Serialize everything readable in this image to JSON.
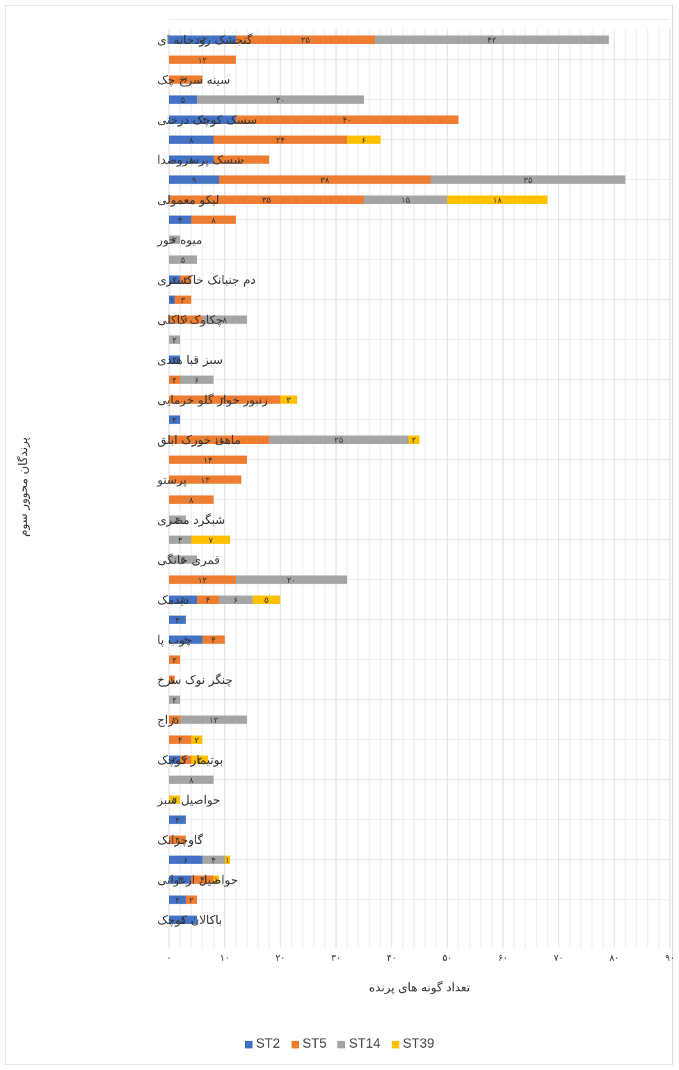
{
  "chart_data": {
    "type": "bar",
    "orientation": "horizontal",
    "stacked": true,
    "ylabel": "پرندگان محوور سوم",
    "xlabel": "تعداد گونه های پرنده",
    "xlim": [
      0,
      90
    ],
    "xticks": [
      "۰",
      "۱۰",
      "۲۰",
      "۳۰",
      "۴۰",
      "۵۰",
      "۶۰",
      "۷۰",
      "۸۰",
      "۹۰"
    ],
    "grid": true,
    "legend_position": "bottom",
    "series_names": [
      "ST2",
      "ST5",
      "ST14",
      "ST39"
    ],
    "colors": {
      "ST2": "#4472c4",
      "ST5": "#ed7d31",
      "ST14": "#a5a5a5",
      "ST39": "#ffc000"
    },
    "categories": [
      "گنجشک رودخانه ای",
      "",
      "سینه سرخ چک",
      "",
      "سسک کوچک درختی",
      "",
      "سسک پرسروصدا",
      "",
      "لیکو معمولی",
      "",
      "میوه خور",
      "",
      "دم جنبانک خاکستری",
      "",
      "چکاوک کاکلی",
      "",
      "سبز قبا هندی",
      "",
      "زنبور خوار گلو خرمایی",
      "",
      "ماهی خورک ابلق",
      "",
      "پرستو",
      "",
      "شبگرد مصری",
      "",
      "قمری خانگی",
      "",
      "دیدمک",
      "",
      "چوب پا",
      "",
      "چنگر نوک سرخ",
      "",
      "دراج",
      "",
      "بوتیمار کوچک",
      "",
      "حواصیل سبز",
      "",
      "گاوچرانک",
      "",
      "حواصیل  ارغوانی",
      "",
      "باکالان کوچک"
    ],
    "rows": [
      [
        {
          "s": "ST2",
          "v": 12,
          "t": "۱۲"
        },
        {
          "s": "ST5",
          "v": 25,
          "t": "۲۵"
        },
        {
          "s": "ST14",
          "v": 42,
          "t": "۴۲"
        }
      ],
      [
        {
          "s": "ST5",
          "v": 12,
          "t": "۱۲"
        }
      ],
      [
        {
          "s": "ST5",
          "v": 6,
          "t": "۶"
        }
      ],
      [
        {
          "s": "ST2",
          "v": 5,
          "t": "۵"
        },
        {
          "s": "ST14",
          "v": 30,
          "t": "۳۰"
        }
      ],
      [
        {
          "s": "ST2",
          "v": 12,
          "t": "۱۲"
        },
        {
          "s": "ST5",
          "v": 40,
          "t": "۴۰"
        }
      ],
      [
        {
          "s": "ST2",
          "v": 8,
          "t": "۸"
        },
        {
          "s": "ST5",
          "v": 24,
          "t": "۲۴"
        },
        {
          "s": "ST39",
          "v": 6,
          "t": "۶"
        }
      ],
      [
        {
          "s": "ST2",
          "v": 8,
          "t": "۸"
        },
        {
          "s": "ST5",
          "v": 10,
          "t": "۱۰"
        }
      ],
      [
        {
          "s": "ST2",
          "v": 9,
          "t": "۹"
        },
        {
          "s": "ST5",
          "v": 38,
          "t": "۳۸"
        },
        {
          "s": "ST14",
          "v": 35,
          "t": "۳۵"
        }
      ],
      [
        {
          "s": "ST5",
          "v": 35,
          "t": "۳۵"
        },
        {
          "s": "ST14",
          "v": 15,
          "t": "۱۵"
        },
        {
          "s": "ST39",
          "v": 18,
          "t": "۱۸"
        }
      ],
      [
        {
          "s": "ST2",
          "v": 4,
          "t": "۴"
        },
        {
          "s": "ST5",
          "v": 8,
          "t": "۸"
        }
      ],
      [
        {
          "s": "ST14",
          "v": 2,
          "t": "۲"
        }
      ],
      [
        {
          "s": "ST14",
          "v": 5,
          "t": "۵"
        }
      ],
      [
        {
          "s": "ST2",
          "v": 2,
          "t": "۲"
        },
        {
          "s": "ST5",
          "v": 2,
          "t": "۲"
        }
      ],
      [
        {
          "s": "ST2",
          "v": 1,
          "t": "۱"
        },
        {
          "s": "ST5",
          "v": 3,
          "t": "۳"
        }
      ],
      [
        {
          "s": "ST5",
          "v": 6,
          "t": "۶"
        },
        {
          "s": "ST14",
          "v": 8,
          "t": "۸"
        }
      ],
      [
        {
          "s": "ST14",
          "v": 2,
          "t": "۲"
        }
      ],
      [
        {
          "s": "ST2",
          "v": 2,
          "t": "۲"
        }
      ],
      [
        {
          "s": "ST5",
          "v": 2,
          "t": "۲"
        },
        {
          "s": "ST14",
          "v": 6,
          "t": "۶"
        }
      ],
      [
        {
          "s": "ST5",
          "v": 20,
          "t": "۲۰"
        },
        {
          "s": "ST39",
          "v": 3,
          "t": "۳"
        }
      ],
      [
        {
          "s": "ST2",
          "v": 2,
          "t": "۲"
        }
      ],
      [
        {
          "s": "ST5",
          "v": 18,
          "t": "۱۸"
        },
        {
          "s": "ST14",
          "v": 25,
          "t": "۲۵"
        },
        {
          "s": "ST39",
          "v": 2,
          "t": "۲"
        }
      ],
      [
        {
          "s": "ST5",
          "v": 14,
          "t": "۱۴"
        }
      ],
      [
        {
          "s": "ST5",
          "v": 13,
          "t": "۱۳"
        }
      ],
      [
        {
          "s": "ST5",
          "v": 8,
          "t": "۸"
        }
      ],
      [
        {
          "s": "ST14",
          "v": 3,
          "t": "۳"
        }
      ],
      [
        {
          "s": "ST14",
          "v": 4,
          "t": "۴"
        },
        {
          "s": "ST39",
          "v": 7,
          "t": "۷"
        }
      ],
      [
        {
          "s": "ST14",
          "v": 5,
          "t": "۵"
        }
      ],
      [
        {
          "s": "ST5",
          "v": 12,
          "t": "۱۲"
        },
        {
          "s": "ST14",
          "v": 20,
          "t": "۲۰"
        }
      ],
      [
        {
          "s": "ST2",
          "v": 5,
          "t": "۵"
        },
        {
          "s": "ST5",
          "v": 4,
          "t": "۴"
        },
        {
          "s": "ST14",
          "v": 6,
          "t": "۶"
        },
        {
          "s": "ST39",
          "v": 5,
          "t": "۵"
        }
      ],
      [
        {
          "s": "ST2",
          "v": 3,
          "t": "۳"
        }
      ],
      [
        {
          "s": "ST2",
          "v": 6,
          "t": "۶"
        },
        {
          "s": "ST5",
          "v": 4,
          "t": "۴"
        }
      ],
      [
        {
          "s": "ST5",
          "v": 2,
          "t": "۲"
        }
      ],
      [
        {
          "s": "ST5",
          "v": 1,
          "t": "۱"
        }
      ],
      [
        {
          "s": "ST14",
          "v": 2,
          "t": "۲"
        }
      ],
      [
        {
          "s": "ST5",
          "v": 2,
          "t": "۲"
        },
        {
          "s": "ST14",
          "v": 12,
          "t": "۱۲"
        }
      ],
      [
        {
          "s": "ST5",
          "v": 4,
          "t": "۴"
        },
        {
          "s": "ST39",
          "v": 2,
          "t": "۲"
        }
      ],
      [
        {
          "s": "ST2",
          "v": 2,
          "t": "۲"
        },
        {
          "s": "ST5",
          "v": 2,
          "t": "۲"
        },
        {
          "s": "ST39",
          "v": 3,
          "t": "۳"
        }
      ],
      [
        {
          "s": "ST14",
          "v": 8,
          "t": "۸"
        }
      ],
      [
        {
          "s": "ST39",
          "v": 2,
          "t": "۲"
        }
      ],
      [
        {
          "s": "ST2",
          "v": 3,
          "t": "۳"
        }
      ],
      [
        {
          "s": "ST5",
          "v": 3,
          "t": "۳"
        }
      ],
      [
        {
          "s": "ST2",
          "v": 6,
          "t": "۶"
        },
        {
          "s": "ST14",
          "v": 4,
          "t": "۴"
        },
        {
          "s": "ST39",
          "v": 1,
          "t": "۱"
        }
      ],
      [
        {
          "s": "ST2",
          "v": 4,
          "t": "۴"
        },
        {
          "s": "ST5",
          "v": 4,
          "t": "۴"
        },
        {
          "s": "ST39",
          "v": 1,
          "t": "۱"
        }
      ],
      [
        {
          "s": "ST2",
          "v": 3,
          "t": "۳"
        },
        {
          "s": "ST5",
          "v": 2,
          "t": "۲"
        }
      ],
      [
        {
          "s": "ST2",
          "v": 5,
          "t": "۵"
        }
      ]
    ]
  }
}
